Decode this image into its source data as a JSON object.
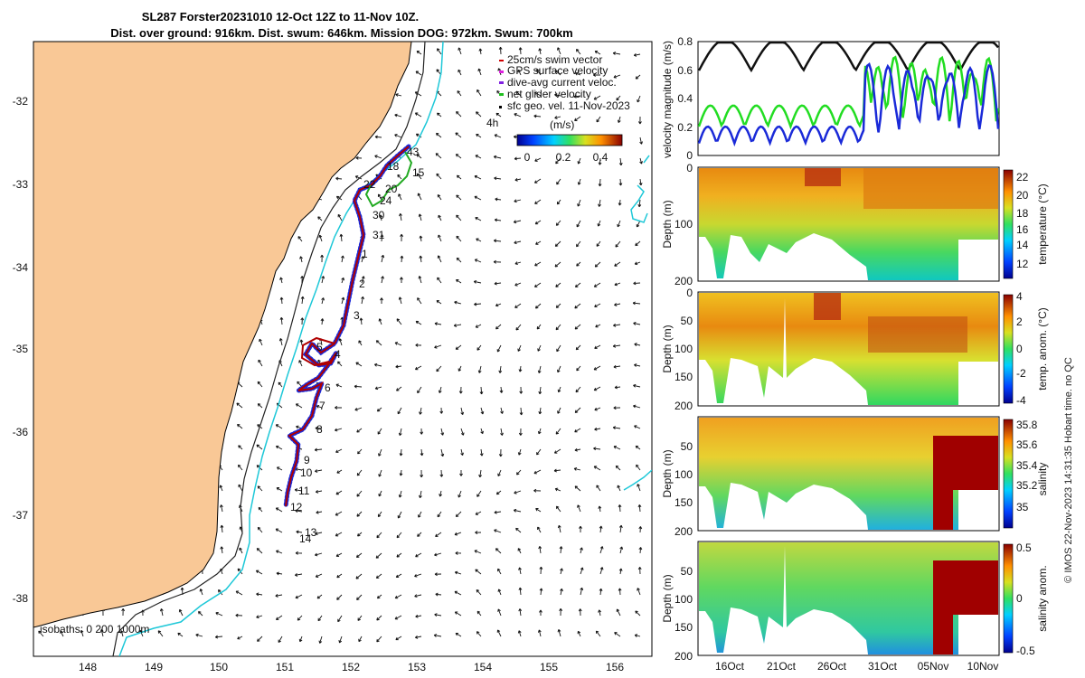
{
  "title_line1": "SL287 Forster20231010 12-Oct 12Z to 11-Nov 10Z.",
  "title_line2": "Dist. over ground: 916km. Dist. swum: 646km. Mission DOG: 972km. Swum: 700km",
  "side_note": "© IMOS 22-Nov-2023 14:31:35 Hobart time. no QC",
  "map": {
    "lon_ticks": [
      "148",
      "149",
      "150",
      "151",
      "152",
      "153",
      "154",
      "155",
      "156"
    ],
    "lat_ticks": [
      "-32",
      "-33",
      "-34",
      "-35",
      "-36",
      "-37",
      "-38"
    ],
    "legend": [
      "25cm/s swim vector",
      "GPS surface velocity",
      "dive-avg current veloc.",
      "net glider velocity",
      "sfc geo. vel. 11-Nov-2023"
    ],
    "legend_prefix": "4h",
    "colorbar_label": "(m/s)",
    "colorbar_ticks": [
      "0",
      "0.2",
      "0.4"
    ],
    "isobaths_label": "isobaths: 0   200  1000m",
    "day_labels": [
      "1",
      "2",
      "3",
      "4",
      "5",
      "6",
      "7",
      "8",
      "9",
      "10",
      "11",
      "12",
      "13",
      "14",
      "15",
      "18",
      "20",
      "22",
      "24",
      "30",
      "31",
      "43"
    ],
    "colors": {
      "land": "#f9c896",
      "coast": "#000000",
      "isobath_200": "#222222",
      "isobath_1000": "#1ec8d8",
      "track": "#b00000"
    }
  },
  "chart_data": [
    {
      "type": "line",
      "title": "",
      "ylabel": "velocity magnitude (m/s)",
      "ylim": [
        0,
        0.8
      ],
      "yticks": [
        "0",
        "0.2",
        "0.4",
        "0.6",
        "0.8"
      ],
      "series": [
        {
          "name": "black",
          "color": "#111111"
        },
        {
          "name": "green",
          "color": "#22dd22"
        },
        {
          "name": "blue",
          "color": "#1a2ad8"
        }
      ]
    },
    {
      "type": "heatmap",
      "ylabel": "Depth (m)",
      "yticks": [
        "0",
        "100",
        "200"
      ],
      "cbar_label": "temperature (°C)",
      "cbar_ticks": [
        "12",
        "14",
        "16",
        "18",
        "20",
        "22"
      ]
    },
    {
      "type": "heatmap",
      "ylabel": "Depth (m)",
      "yticks": [
        "0",
        "50",
        "100",
        "150",
        "200"
      ],
      "cbar_label": "temp. anom. (°C)",
      "cbar_ticks": [
        "-4",
        "-2",
        "0",
        "2",
        "4"
      ]
    },
    {
      "type": "heatmap",
      "ylabel": "Depth (m)",
      "yticks": [
        "50",
        "100",
        "150",
        "200"
      ],
      "cbar_label": "salinity",
      "cbar_ticks": [
        "35",
        "35.2",
        "35.4",
        "35.6",
        "35.8"
      ]
    },
    {
      "type": "heatmap",
      "ylabel": "Depth (m)",
      "yticks": [
        "50",
        "100",
        "150",
        "200"
      ],
      "cbar_label": "salinity anom.",
      "cbar_ticks": [
        "-0.5",
        "0",
        "0.5"
      ]
    }
  ],
  "time_ticks": [
    "16Oct",
    "21Oct",
    "26Oct",
    "31Oct",
    "05Nov",
    "10Nov"
  ]
}
